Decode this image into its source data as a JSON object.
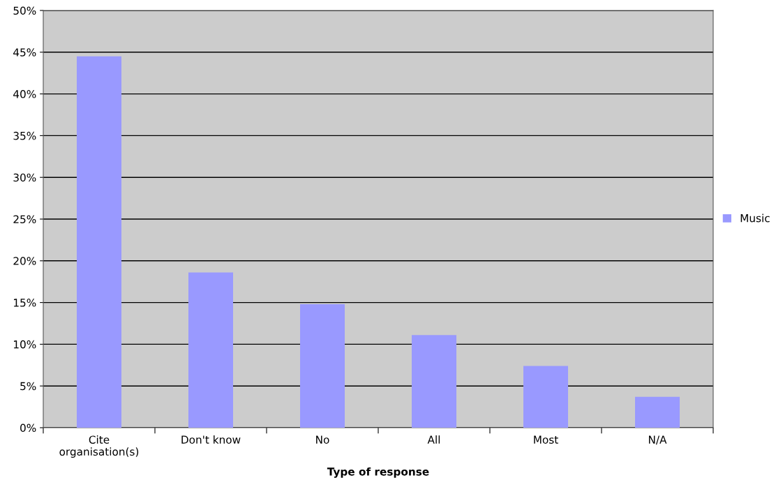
{
  "chart_data": {
    "type": "bar",
    "xlabel": "Type of response",
    "categories": [
      "Cite\norganisation(s)",
      "Don't know",
      "No",
      "All",
      "Most",
      "N/A"
    ],
    "series": [
      {
        "name": "Music",
        "color": "#9999ff",
        "values": [
          44.5,
          18.6,
          14.8,
          11.1,
          7.4,
          3.7
        ]
      }
    ],
    "ylim": [
      0,
      50
    ],
    "yticks": [
      {
        "value": 0,
        "label": "0%"
      },
      {
        "value": 5,
        "label": "5%"
      },
      {
        "value": 10,
        "label": "10%"
      },
      {
        "value": 15,
        "label": "15%"
      },
      {
        "value": 20,
        "label": "20%"
      },
      {
        "value": 25,
        "label": "25%"
      },
      {
        "value": 30,
        "label": "30%"
      },
      {
        "value": 35,
        "label": "35%"
      },
      {
        "value": 40,
        "label": "40%"
      },
      {
        "value": 45,
        "label": "45%"
      },
      {
        "value": 50,
        "label": "50%"
      }
    ],
    "grid": "y",
    "legend": "right"
  }
}
